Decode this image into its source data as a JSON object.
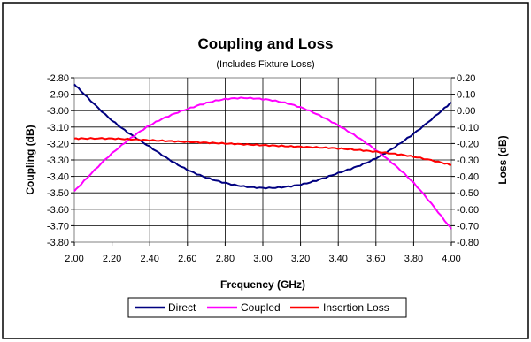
{
  "chart_data": {
    "type": "line",
    "title": "Coupling and Loss",
    "subtitle": "(Includes Fixture Loss)",
    "xlabel": "Frequency (GHz)",
    "ylabel_left": "Coupling (dB)",
    "ylabel_right": "Loss (dB)",
    "xlim": [
      2.0,
      4.0
    ],
    "ylim_left": [
      -3.8,
      -2.8
    ],
    "ylim_right": [
      -0.8,
      0.2
    ],
    "x_ticks": [
      "2.00",
      "2.20",
      "2.40",
      "2.60",
      "2.80",
      "3.00",
      "3.20",
      "3.40",
      "3.60",
      "3.80",
      "4.00"
    ],
    "y_ticks_left": [
      "-2.80",
      "-2.90",
      "-3.00",
      "-3.10",
      "-3.20",
      "-3.30",
      "-3.40",
      "-3.50",
      "-3.60",
      "-3.70",
      "-3.80"
    ],
    "y_ticks_right": [
      "0.20",
      "0.10",
      "0.00",
      "-0.10",
      "-0.20",
      "-0.30",
      "-0.40",
      "-0.50",
      "-0.60",
      "-0.70",
      "-0.80"
    ],
    "grid": true,
    "legend_position": "bottom",
    "x": [
      2.0,
      2.2,
      2.4,
      2.6,
      2.8,
      3.0,
      3.2,
      3.4,
      3.6,
      3.8,
      4.0
    ],
    "series": [
      {
        "name": "Direct",
        "axis": "left",
        "color": "#000080",
        "values": [
          -2.84,
          -3.06,
          -3.22,
          -3.36,
          -3.44,
          -3.47,
          -3.45,
          -3.38,
          -3.29,
          -3.14,
          -2.95
        ]
      },
      {
        "name": "Coupled",
        "axis": "left",
        "color": "#ff00ff",
        "values": [
          -3.49,
          -3.26,
          -3.09,
          -2.99,
          -2.93,
          -2.93,
          -2.98,
          -3.09,
          -3.24,
          -3.44,
          -3.72
        ]
      },
      {
        "name": "Insertion Loss",
        "axis": "right",
        "color": "#ff0000",
        "values": [
          -0.17,
          -0.17,
          -0.18,
          -0.19,
          -0.2,
          -0.21,
          -0.22,
          -0.23,
          -0.25,
          -0.28,
          -0.33
        ]
      }
    ]
  }
}
